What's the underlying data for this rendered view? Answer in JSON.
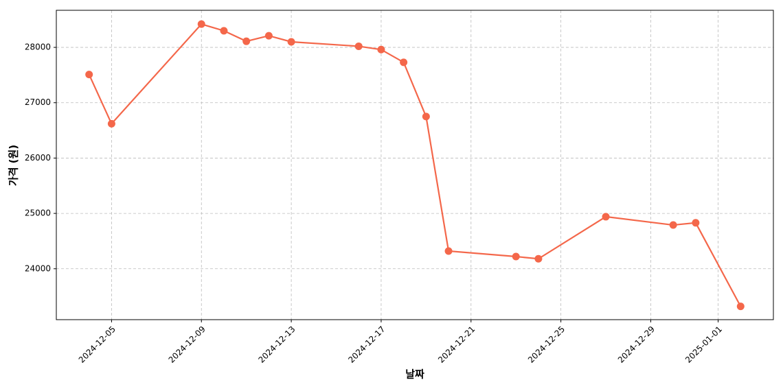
{
  "chart_data": {
    "type": "line",
    "x_label": "날짜",
    "y_label": "가격 (원)",
    "x": [
      "2024-12-04",
      "2024-12-05",
      "2024-12-09",
      "2024-12-10",
      "2024-12-11",
      "2024-12-12",
      "2024-12-13",
      "2024-12-16",
      "2024-12-17",
      "2024-12-18",
      "2024-12-19",
      "2024-12-20",
      "2024-12-23",
      "2024-12-24",
      "2024-12-27",
      "2024-12-30",
      "2024-12-31",
      "2025-01-02"
    ],
    "values": [
      27510,
      26620,
      28420,
      28300,
      28110,
      28210,
      28100,
      28020,
      27960,
      27730,
      26750,
      24320,
      24220,
      24180,
      24940,
      24790,
      24830,
      23320
    ],
    "color": "#f4674a",
    "xlim": [
      "2024-12-02T13:00",
      "2025-01-03T11:00"
    ],
    "xticks": [
      "2024-12-05",
      "2024-12-09",
      "2024-12-13",
      "2024-12-17",
      "2024-12-21",
      "2024-12-25",
      "2024-12-29",
      "2025-01-01"
    ],
    "ylim": [
      23080,
      28670
    ],
    "yticks": [
      24000,
      25000,
      26000,
      27000,
      28000
    ],
    "grid": true
  }
}
